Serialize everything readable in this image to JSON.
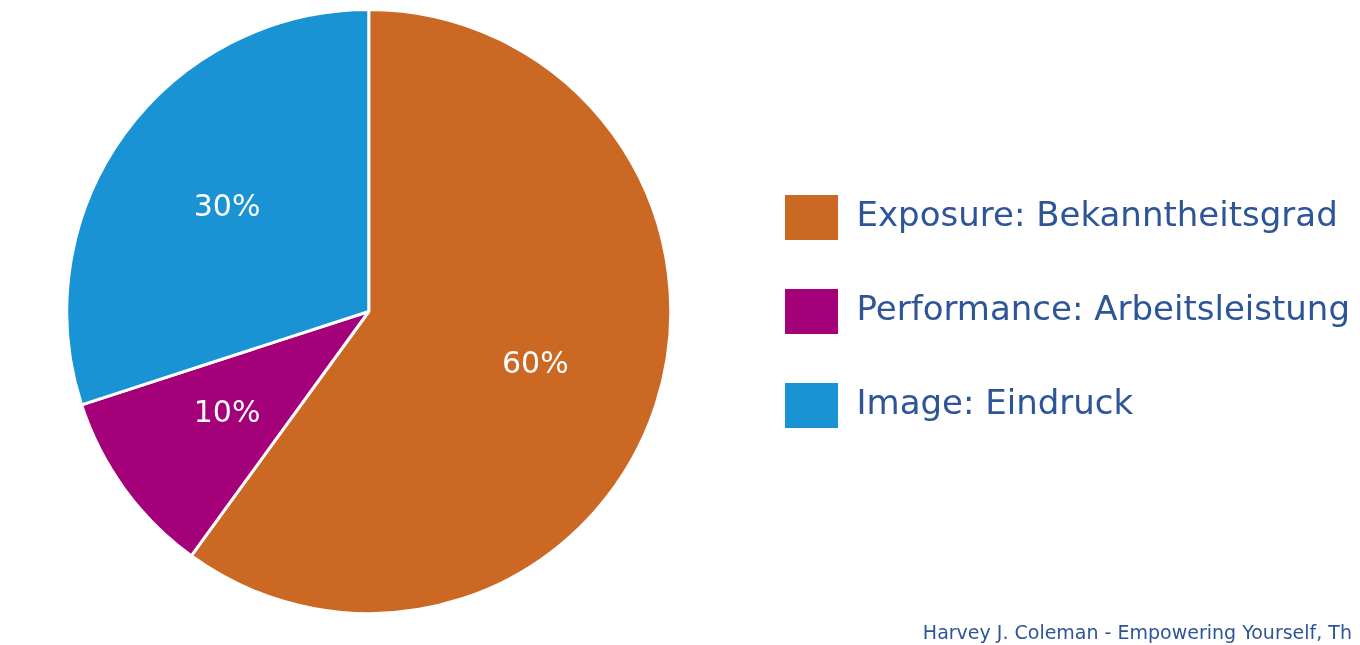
{
  "chart_data": {
    "type": "pie",
    "categories": [
      "Exposure: Bekanntheitsgrad",
      "Performance: Arbeitsleistung",
      "Image: Eindruck"
    ],
    "values": [
      60,
      10,
      30
    ],
    "colors": [
      "#cb6823",
      "#a4007a",
      "#1a93d5"
    ],
    "value_labels": [
      "60%",
      "10%",
      "30%"
    ],
    "legend": "right",
    "annotations": [
      "Harvey J. Coleman - Empowering Yourself, Th"
    ]
  }
}
